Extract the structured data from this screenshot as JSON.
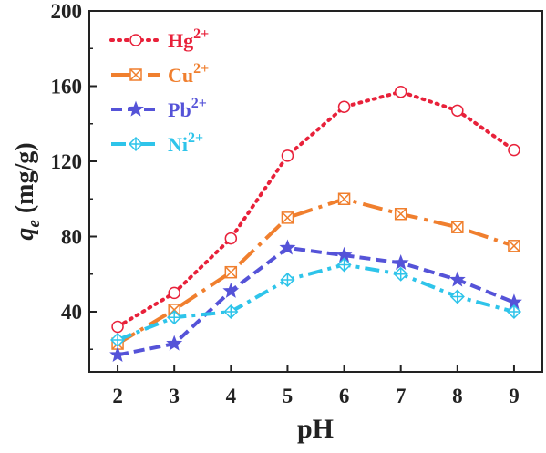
{
  "chart_data": {
    "type": "line",
    "title": "",
    "xlabel": "pH",
    "ylabel_main": "q",
    "ylabel_sub": "e",
    "ylabel_unit": " (mg/g)",
    "xlim": [
      1.5,
      9.5
    ],
    "ylim": [
      8,
      200
    ],
    "x_ticks": [
      2,
      3,
      4,
      5,
      6,
      7,
      8,
      9
    ],
    "y_ticks": [
      40,
      80,
      120,
      160,
      200
    ],
    "grid": false,
    "legend_position": "top-left",
    "series": [
      {
        "name": "Hg",
        "charge": "2+",
        "color": "#e8213a",
        "marker": "circle",
        "dash": "dotted",
        "x": [
          2,
          3,
          4,
          5,
          6,
          7,
          8,
          9
        ],
        "values": [
          32,
          50,
          79,
          123,
          149,
          157,
          147,
          126
        ]
      },
      {
        "name": "Cu",
        "charge": "2+",
        "color": "#f07f2e",
        "marker": "square-x",
        "dash": "long-dash-dot",
        "x": [
          2,
          3,
          4,
          5,
          6,
          7,
          8,
          9
        ],
        "values": [
          23,
          41,
          61,
          90,
          100,
          92,
          85,
          75
        ]
      },
      {
        "name": "Pb",
        "charge": "2+",
        "color": "#5553d8",
        "marker": "star",
        "dash": "dashed",
        "x": [
          2,
          3,
          4,
          5,
          6,
          7,
          8,
          9
        ],
        "values": [
          17,
          23,
          51,
          74,
          70,
          66,
          57,
          45
        ]
      },
      {
        "name": "Ni",
        "charge": "2+",
        "color": "#2ec4ea",
        "marker": "diamond-plus",
        "dash": "dash-dot",
        "x": [
          2,
          3,
          4,
          5,
          6,
          7,
          8,
          9
        ],
        "values": [
          25,
          37,
          40,
          57,
          65,
          60,
          48,
          40
        ]
      }
    ]
  }
}
